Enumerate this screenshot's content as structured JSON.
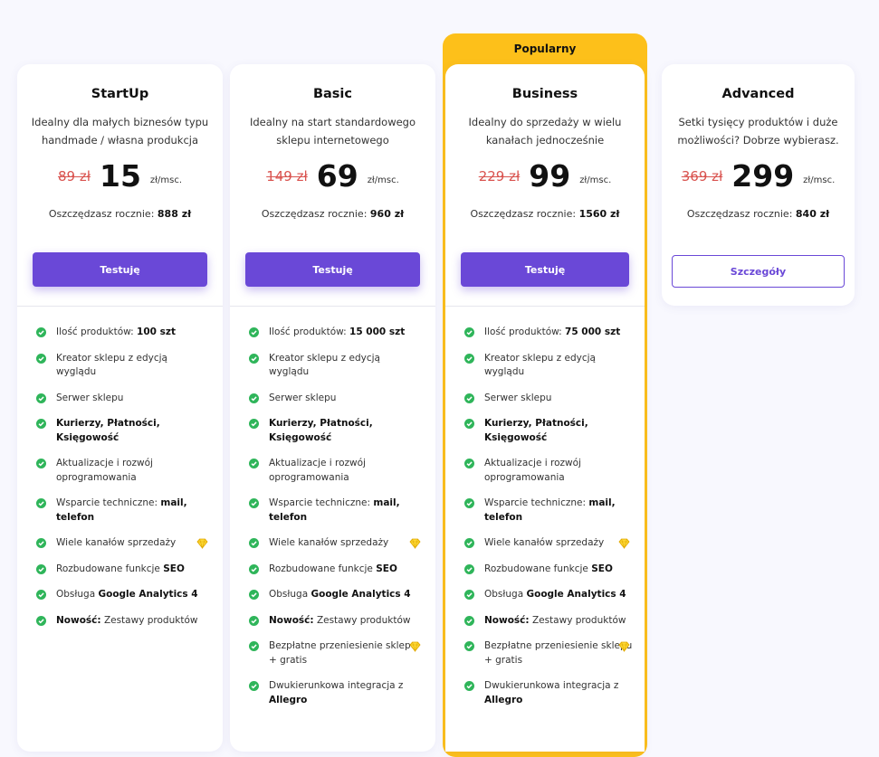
{
  "badge": "Popularny",
  "plans": [
    {
      "name": "StartUp",
      "description": [
        "Idealny dla małych biznesów typu",
        "handmade / własna produkcja"
      ],
      "old_price": "89 zł",
      "price": "15",
      "unit": "zł/msc.",
      "savings_label": "Oszczędzasz rocznie:",
      "savings": "888 zł",
      "button": "Testuję",
      "button_style": "filled",
      "features": [
        {
          "parts": [
            {
              "text": "Ilość produktów:",
              "bold": false
            },
            {
              "text": "100 szt",
              "bold": true
            }
          ]
        },
        {
          "parts": [
            {
              "text": "Kreator sklepu z edycją wyglądu",
              "bold": false
            }
          ]
        },
        {
          "parts": [
            {
              "text": "Serwer sklepu",
              "bold": false
            }
          ]
        },
        {
          "parts": [
            {
              "text": "Kurierzy, Płatności, Księgowość",
              "bold": true
            }
          ]
        },
        {
          "parts": [
            {
              "text": "Aktualizacje i rozwój oprogramowania",
              "bold": false
            }
          ]
        },
        {
          "parts": [
            {
              "text": "Wsparcie techniczne:",
              "bold": false
            },
            {
              "text": "mail, telefon",
              "bold": true
            }
          ]
        },
        {
          "parts": [
            {
              "text": "Wiele kanałów sprzedaży",
              "bold": false
            }
          ],
          "premium": true
        },
        {
          "parts": [
            {
              "text": "Rozbudowane funkcje",
              "bold": false
            },
            {
              "text": "SEO",
              "bold": true
            }
          ]
        },
        {
          "parts": [
            {
              "text": "Obsługa",
              "bold": false
            },
            {
              "text": "Google Analytics 4",
              "bold": true
            }
          ]
        },
        {
          "parts": [
            {
              "text": "Nowość:",
              "bold": true
            },
            {
              "text": "Zestawy produktów",
              "bold": false
            }
          ]
        }
      ]
    },
    {
      "name": "Basic",
      "description": [
        "Idealny na start standardowego",
        "sklepu internetowego"
      ],
      "old_price": "149 zł",
      "price": "69",
      "unit": "zł/msc.",
      "savings_label": "Oszczędzasz rocznie:",
      "savings": "960 zł",
      "button": "Testuję",
      "button_style": "filled",
      "features": [
        {
          "parts": [
            {
              "text": "Ilość produktów:",
              "bold": false
            },
            {
              "text": "15 000 szt",
              "bold": true
            }
          ]
        },
        {
          "parts": [
            {
              "text": "Kreator sklepu z edycją wyglądu",
              "bold": false
            }
          ]
        },
        {
          "parts": [
            {
              "text": "Serwer sklepu",
              "bold": false
            }
          ]
        },
        {
          "parts": [
            {
              "text": "Kurierzy, Płatności, Księgowość",
              "bold": true
            }
          ]
        },
        {
          "parts": [
            {
              "text": "Aktualizacje i rozwój oprogramowania",
              "bold": false
            }
          ]
        },
        {
          "parts": [
            {
              "text": "Wsparcie techniczne:",
              "bold": false
            },
            {
              "text": "mail, telefon",
              "bold": true
            }
          ]
        },
        {
          "parts": [
            {
              "text": "Wiele kanałów sprzedaży",
              "bold": false
            }
          ],
          "premium": true
        },
        {
          "parts": [
            {
              "text": "Rozbudowane funkcje",
              "bold": false
            },
            {
              "text": "SEO",
              "bold": true
            }
          ]
        },
        {
          "parts": [
            {
              "text": "Obsługa",
              "bold": false
            },
            {
              "text": "Google Analytics 4",
              "bold": true
            }
          ]
        },
        {
          "parts": [
            {
              "text": "Nowość:",
              "bold": true
            },
            {
              "text": "Zestawy produktów",
              "bold": false
            }
          ]
        },
        {
          "parts": [
            {
              "text": "Bezpłatne przeniesienie sklepu + gratis",
              "bold": false
            }
          ],
          "premium": true
        },
        {
          "parts": [
            {
              "text": "Dwukierunkowa integracja z",
              "bold": false
            },
            {
              "text": "Allegro",
              "bold": true
            }
          ]
        }
      ]
    },
    {
      "name": "Business",
      "popular": true,
      "description": [
        "Idealny do sprzedaży w wielu",
        "kanałach jednocześnie"
      ],
      "old_price": "229 zł",
      "price": "99",
      "unit": "zł/msc.",
      "savings_label": "Oszczędzasz rocznie:",
      "savings": "1560 zł",
      "button": "Testuję",
      "button_style": "filled",
      "features": [
        {
          "parts": [
            {
              "text": "Ilość produktów:",
              "bold": false
            },
            {
              "text": "75 000 szt",
              "bold": true
            }
          ]
        },
        {
          "parts": [
            {
              "text": "Kreator sklepu z edycją wyglądu",
              "bold": false
            }
          ]
        },
        {
          "parts": [
            {
              "text": "Serwer sklepu",
              "bold": false
            }
          ]
        },
        {
          "parts": [
            {
              "text": "Kurierzy, Płatności, Księgowość",
              "bold": true
            }
          ]
        },
        {
          "parts": [
            {
              "text": "Aktualizacje i rozwój oprogramowania",
              "bold": false
            }
          ]
        },
        {
          "parts": [
            {
              "text": "Wsparcie techniczne:",
              "bold": false
            },
            {
              "text": "mail, telefon",
              "bold": true
            }
          ]
        },
        {
          "parts": [
            {
              "text": "Wiele kanałów sprzedaży",
              "bold": false
            }
          ],
          "premium": true
        },
        {
          "parts": [
            {
              "text": "Rozbudowane funkcje",
              "bold": false
            },
            {
              "text": "SEO",
              "bold": true
            }
          ]
        },
        {
          "parts": [
            {
              "text": "Obsługa",
              "bold": false
            },
            {
              "text": "Google Analytics 4",
              "bold": true
            }
          ]
        },
        {
          "parts": [
            {
              "text": "Nowość:",
              "bold": true
            },
            {
              "text": "Zestawy produktów",
              "bold": false
            }
          ]
        },
        {
          "parts": [
            {
              "text": "Bezpłatne przeniesienie sklepu + gratis",
              "bold": false
            }
          ],
          "premium": true
        },
        {
          "parts": [
            {
              "text": "Dwukierunkowa integracja z",
              "bold": false
            },
            {
              "text": "Allegro",
              "bold": true
            }
          ]
        }
      ]
    },
    {
      "name": "Advanced",
      "description": [
        "Setki tysięcy produktów i duże",
        "możliwości? Dobrze wybierasz."
      ],
      "old_price": "369 zł",
      "price": "299",
      "unit": "zł/msc.",
      "savings_label": "Oszczędzasz rocznie:",
      "savings": "840 zł",
      "button": "Szczegóły",
      "button_style": "outline",
      "features": []
    }
  ]
}
